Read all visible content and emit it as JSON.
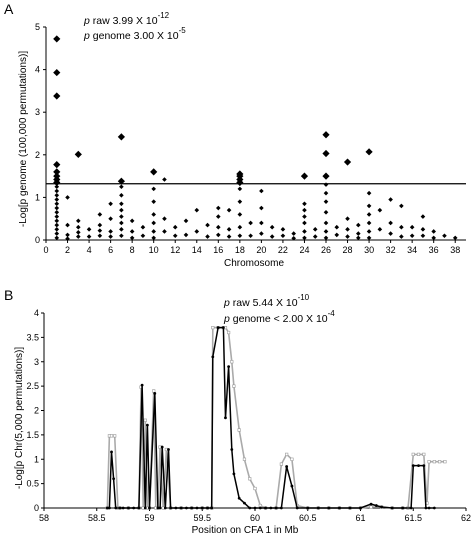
{
  "chart_data": [
    {
      "panel_label": "A",
      "type": "scatter",
      "xlabel": "Chromosome",
      "ylabel": "-Log[p genome (100,000 permutations)]",
      "xlim": [
        0,
        39
      ],
      "ylim": [
        0,
        5
      ],
      "x_ticks": [
        0,
        2,
        4,
        6,
        8,
        10,
        12,
        14,
        16,
        18,
        20,
        22,
        24,
        26,
        28,
        30,
        32,
        34,
        36,
        38
      ],
      "y_ticks": [
        0,
        1,
        2,
        3,
        4,
        5
      ],
      "threshold": 1.32,
      "annotation": {
        "line1_p": "p",
        "line1_text": " raw 3.99 X 10",
        "line1_exp": "-12",
        "line2_p": "p",
        "line2_text": " genome 3.00 X 10",
        "line2_exp": "-5"
      },
      "points_large": [
        {
          "x": 1,
          "y": 4.72
        },
        {
          "x": 1,
          "y": 3.93
        },
        {
          "x": 1,
          "y": 3.38
        },
        {
          "x": 1,
          "y": 1.77
        },
        {
          "x": 1,
          "y": 1.6
        },
        {
          "x": 1,
          "y": 1.5
        },
        {
          "x": 1,
          "y": 1.42
        },
        {
          "x": 1,
          "y": 1.35
        },
        {
          "x": 3,
          "y": 2.01
        },
        {
          "x": 7,
          "y": 2.42
        },
        {
          "x": 7,
          "y": 1.38
        },
        {
          "x": 10,
          "y": 1.6
        },
        {
          "x": 18,
          "y": 1.55
        },
        {
          "x": 18,
          "y": 1.5
        },
        {
          "x": 18,
          "y": 1.42
        },
        {
          "x": 18,
          "y": 1.35
        },
        {
          "x": 24,
          "y": 1.5
        },
        {
          "x": 26,
          "y": 2.47
        },
        {
          "x": 26,
          "y": 2.03
        },
        {
          "x": 26,
          "y": 1.5
        },
        {
          "x": 28,
          "y": 1.83
        },
        {
          "x": 30,
          "y": 2.07
        }
      ],
      "points_small": [
        {
          "x": 1,
          "y": 1.25
        },
        {
          "x": 1,
          "y": 1.15
        },
        {
          "x": 1,
          "y": 1.05
        },
        {
          "x": 1,
          "y": 0.95
        },
        {
          "x": 1,
          "y": 0.85
        },
        {
          "x": 1,
          "y": 0.75
        },
        {
          "x": 1,
          "y": 0.65
        },
        {
          "x": 1,
          "y": 0.55
        },
        {
          "x": 1,
          "y": 0.45
        },
        {
          "x": 1,
          "y": 0.35
        },
        {
          "x": 1,
          "y": 0.25
        },
        {
          "x": 1,
          "y": 0.15
        },
        {
          "x": 1,
          "y": 0.05
        },
        {
          "x": 2,
          "y": 1.0
        },
        {
          "x": 2,
          "y": 0.35
        },
        {
          "x": 2,
          "y": 0.12
        },
        {
          "x": 2,
          "y": 0.03
        },
        {
          "x": 3,
          "y": 0.45
        },
        {
          "x": 3,
          "y": 0.3
        },
        {
          "x": 3,
          "y": 0.18
        },
        {
          "x": 3,
          "y": 0.08
        },
        {
          "x": 4,
          "y": 0.25
        },
        {
          "x": 4,
          "y": 0.08
        },
        {
          "x": 5,
          "y": 0.6
        },
        {
          "x": 5,
          "y": 0.35
        },
        {
          "x": 5,
          "y": 0.22
        },
        {
          "x": 5,
          "y": 0.1
        },
        {
          "x": 6,
          "y": 0.85
        },
        {
          "x": 6,
          "y": 0.5
        },
        {
          "x": 6,
          "y": 0.2
        },
        {
          "x": 6,
          "y": 0.08
        },
        {
          "x": 7,
          "y": 1.25
        },
        {
          "x": 7,
          "y": 1.05
        },
        {
          "x": 7,
          "y": 0.85
        },
        {
          "x": 7,
          "y": 0.7
        },
        {
          "x": 7,
          "y": 0.55
        },
        {
          "x": 7,
          "y": 0.4
        },
        {
          "x": 7,
          "y": 0.25
        },
        {
          "x": 7,
          "y": 0.1
        },
        {
          "x": 8,
          "y": 0.45
        },
        {
          "x": 8,
          "y": 0.2
        },
        {
          "x": 8,
          "y": 0.05
        },
        {
          "x": 9,
          "y": 0.3
        },
        {
          "x": 9,
          "y": 0.1
        },
        {
          "x": 10,
          "y": 1.2
        },
        {
          "x": 10,
          "y": 0.9
        },
        {
          "x": 10,
          "y": 0.6
        },
        {
          "x": 10,
          "y": 0.4
        },
        {
          "x": 10,
          "y": 0.2
        },
        {
          "x": 10,
          "y": 0.05
        },
        {
          "x": 11,
          "y": 1.42
        },
        {
          "x": 11,
          "y": 0.5
        },
        {
          "x": 11,
          "y": 0.2
        },
        {
          "x": 12,
          "y": 0.3
        },
        {
          "x": 12,
          "y": 0.1
        },
        {
          "x": 13,
          "y": 0.45
        },
        {
          "x": 13,
          "y": 0.12
        },
        {
          "x": 14,
          "y": 0.7
        },
        {
          "x": 14,
          "y": 0.2
        },
        {
          "x": 15,
          "y": 0.35
        },
        {
          "x": 15,
          "y": 0.08
        },
        {
          "x": 16,
          "y": 0.75
        },
        {
          "x": 16,
          "y": 0.55
        },
        {
          "x": 16,
          "y": 0.3
        },
        {
          "x": 16,
          "y": 0.12
        },
        {
          "x": 17,
          "y": 0.7
        },
        {
          "x": 17,
          "y": 0.25
        },
        {
          "x": 17,
          "y": 0.08
        },
        {
          "x": 18,
          "y": 1.2
        },
        {
          "x": 18,
          "y": 0.9
        },
        {
          "x": 18,
          "y": 0.6
        },
        {
          "x": 18,
          "y": 0.3
        },
        {
          "x": 18,
          "y": 0.1
        },
        {
          "x": 19,
          "y": 0.4
        },
        {
          "x": 19,
          "y": 0.1
        },
        {
          "x": 20,
          "y": 1.15
        },
        {
          "x": 20,
          "y": 0.75
        },
        {
          "x": 20,
          "y": 0.4
        },
        {
          "x": 20,
          "y": 0.15
        },
        {
          "x": 21,
          "y": 0.3
        },
        {
          "x": 21,
          "y": 0.08
        },
        {
          "x": 22,
          "y": 0.25
        },
        {
          "x": 22,
          "y": 0.1
        },
        {
          "x": 23,
          "y": 0.15
        },
        {
          "x": 23,
          "y": 0.04
        },
        {
          "x": 24,
          "y": 0.85
        },
        {
          "x": 24,
          "y": 0.7
        },
        {
          "x": 24,
          "y": 0.55
        },
        {
          "x": 24,
          "y": 0.4
        },
        {
          "x": 24,
          "y": 0.2
        },
        {
          "x": 24,
          "y": 0.05
        },
        {
          "x": 25,
          "y": 0.25
        },
        {
          "x": 25,
          "y": 0.08
        },
        {
          "x": 26,
          "y": 1.3
        },
        {
          "x": 26,
          "y": 1.1
        },
        {
          "x": 26,
          "y": 0.9
        },
        {
          "x": 26,
          "y": 0.65
        },
        {
          "x": 26,
          "y": 0.4
        },
        {
          "x": 26,
          "y": 0.2
        },
        {
          "x": 26,
          "y": 0.05
        },
        {
          "x": 27,
          "y": 0.3
        },
        {
          "x": 27,
          "y": 0.12
        },
        {
          "x": 28,
          "y": 0.5
        },
        {
          "x": 28,
          "y": 0.25
        },
        {
          "x": 28,
          "y": 0.08
        },
        {
          "x": 29,
          "y": 0.35
        },
        {
          "x": 29,
          "y": 0.15
        },
        {
          "x": 29,
          "y": 0.05
        },
        {
          "x": 30,
          "y": 1.1
        },
        {
          "x": 30,
          "y": 0.8
        },
        {
          "x": 30,
          "y": 0.6
        },
        {
          "x": 30,
          "y": 0.4
        },
        {
          "x": 30,
          "y": 0.2
        },
        {
          "x": 30,
          "y": 0.05
        },
        {
          "x": 31,
          "y": 0.7
        },
        {
          "x": 31,
          "y": 0.25
        },
        {
          "x": 32,
          "y": 0.95
        },
        {
          "x": 32,
          "y": 0.4
        },
        {
          "x": 32,
          "y": 0.15
        },
        {
          "x": 33,
          "y": 0.8
        },
        {
          "x": 33,
          "y": 0.3
        },
        {
          "x": 33,
          "y": 0.08
        },
        {
          "x": 34,
          "y": 0.3
        },
        {
          "x": 34,
          "y": 0.1
        },
        {
          "x": 35,
          "y": 0.55
        },
        {
          "x": 35,
          "y": 0.25
        },
        {
          "x": 35,
          "y": 0.1
        },
        {
          "x": 36,
          "y": 0.2
        },
        {
          "x": 36,
          "y": 0.05
        },
        {
          "x": 37,
          "y": 0.1
        },
        {
          "x": 38,
          "y": 0.05
        }
      ]
    },
    {
      "panel_label": "B",
      "type": "line",
      "xlabel": "Position on CFA 1 in Mb",
      "ylabel": "-Log[p Chr(5,000 permutations)]",
      "xlim": [
        58,
        62
      ],
      "ylim": [
        0,
        4
      ],
      "x_ticks": [
        58,
        58.5,
        59,
        59.5,
        60,
        60.5,
        61,
        61.5,
        62
      ],
      "y_ticks": [
        0,
        0.5,
        1,
        1.5,
        2,
        2.5,
        3,
        3.5,
        4
      ],
      "annotation": {
        "line1_p": "p",
        "line1_text": " raw 5.44 X 10",
        "line1_exp": "-10",
        "line2_p": "p",
        "line2_text": " genome < 2.00 X 10",
        "line2_exp": "-4"
      },
      "series": [
        {
          "color": "#000000",
          "x": [
            58.6,
            58.62,
            58.64,
            58.66,
            58.68,
            58.72,
            58.75,
            58.8,
            58.85,
            58.9,
            58.93,
            58.96,
            58.98,
            59.0,
            59.05,
            59.08,
            59.1,
            59.12,
            59.15,
            59.18,
            59.2,
            59.25,
            59.3,
            59.35,
            59.4,
            59.45,
            59.5,
            59.55,
            59.59,
            59.6,
            59.65,
            59.7,
            59.72,
            59.75,
            59.78,
            59.8,
            59.85,
            59.9,
            59.95,
            60.0,
            60.05,
            60.1,
            60.15,
            60.2,
            60.25,
            60.3,
            60.35,
            60.4,
            60.5,
            60.6,
            60.7,
            60.8,
            60.9,
            61.0,
            61.1,
            61.15,
            61.2,
            61.3,
            61.4,
            61.48,
            61.5,
            61.55,
            61.6,
            61.62,
            61.65,
            61.7
          ],
          "y": [
            0,
            0,
            1.15,
            0.6,
            0,
            0,
            0,
            0,
            0,
            0,
            2.52,
            0,
            1.7,
            0,
            2.35,
            0,
            0,
            1.25,
            0,
            1.2,
            0,
            0,
            0,
            0,
            0,
            0,
            0,
            0,
            0,
            3.1,
            3.7,
            3.7,
            1.85,
            2.9,
            1.2,
            0.7,
            0.2,
            0.1,
            0,
            0,
            0,
            0,
            0,
            0,
            0,
            0.85,
            0.45,
            0,
            0,
            0,
            0,
            0,
            0,
            0,
            0.08,
            0.05,
            0.02,
            0,
            0,
            0,
            0.87,
            0.87,
            0.87,
            0,
            0,
            0
          ]
        },
        {
          "color": "#aaaaaa",
          "x": [
            58.6,
            58.62,
            58.64,
            58.67,
            58.7,
            58.72,
            58.8,
            58.9,
            58.92,
            58.94,
            58.96,
            58.98,
            59.0,
            59.04,
            59.06,
            59.08,
            59.1,
            59.13,
            59.16,
            59.2,
            59.3,
            59.4,
            59.5,
            59.55,
            59.59,
            59.6,
            59.65,
            59.7,
            59.72,
            59.75,
            59.78,
            59.8,
            59.85,
            59.9,
            59.95,
            60.0,
            60.05,
            60.1,
            60.2,
            60.25,
            60.3,
            60.35,
            60.4,
            60.5,
            60.6,
            60.7,
            60.8,
            60.9,
            61.0,
            61.1,
            61.2,
            61.3,
            61.4,
            61.45,
            61.5,
            61.55,
            61.6,
            61.63,
            61.65,
            61.7,
            61.75,
            61.8
          ],
          "y": [
            0,
            1.48,
            1.48,
            1.48,
            0,
            0,
            0,
            0,
            2.48,
            0,
            1.8,
            0,
            0,
            2.4,
            0,
            0,
            1.25,
            0,
            1.2,
            0,
            0,
            0,
            0,
            0,
            0,
            3.7,
            3.7,
            3.7,
            3.7,
            3.6,
            3.0,
            2.5,
            1.6,
            1.0,
            0.6,
            0.4,
            0.05,
            0,
            0,
            0.9,
            1.1,
            1.0,
            0.05,
            0,
            0,
            0,
            0,
            0,
            0,
            0.02,
            0.02,
            0,
            0,
            0,
            1.1,
            1.1,
            1.1,
            0.1,
            0.95,
            0.95,
            0.95,
            0.95
          ]
        }
      ]
    }
  ]
}
